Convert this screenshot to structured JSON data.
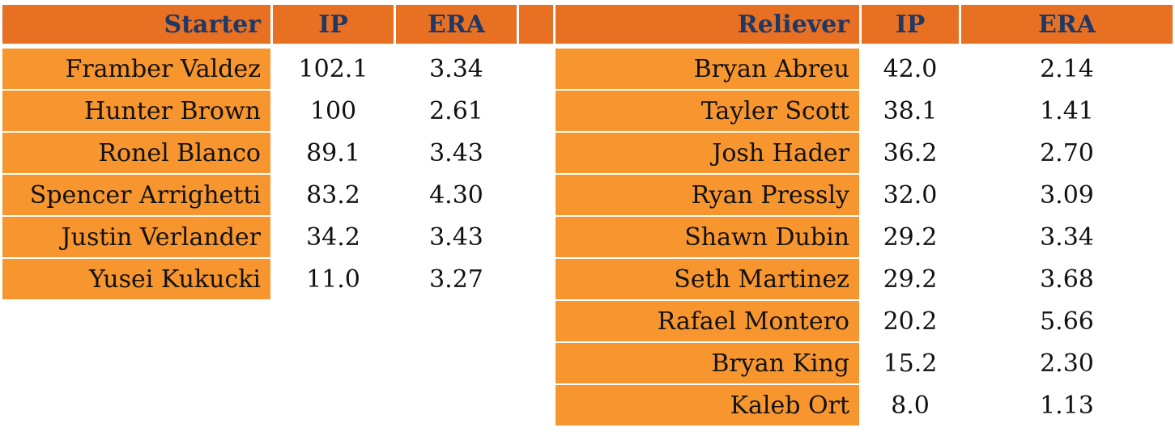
{
  "colors": {
    "header_bg": "#e87022",
    "name_bg": "#f7962f",
    "header_text": "#1f3864"
  },
  "starters": {
    "headers": {
      "name": "Starter",
      "ip": "IP",
      "era": "ERA"
    },
    "rows": [
      {
        "name": "Framber Valdez",
        "ip": "102.1",
        "era": "3.34"
      },
      {
        "name": "Hunter Brown",
        "ip": "100",
        "era": "2.61"
      },
      {
        "name": "Ronel Blanco",
        "ip": "89.1",
        "era": "3.43"
      },
      {
        "name": "Spencer Arrighetti",
        "ip": "83.2",
        "era": "4.30"
      },
      {
        "name": "Justin Verlander",
        "ip": "34.2",
        "era": "3.43"
      },
      {
        "name": "Yusei Kukucki",
        "ip": "11.0",
        "era": "3.27"
      }
    ]
  },
  "relievers": {
    "headers": {
      "name": "Reliever",
      "ip": "IP",
      "era": "ERA"
    },
    "rows": [
      {
        "name": "Bryan Abreu",
        "ip": "42.0",
        "era": "2.14"
      },
      {
        "name": "Tayler Scott",
        "ip": "38.1",
        "era": "1.41"
      },
      {
        "name": "Josh Hader",
        "ip": "36.2",
        "era": "2.70"
      },
      {
        "name": "Ryan Pressly",
        "ip": "32.0",
        "era": "3.09"
      },
      {
        "name": "Shawn Dubin",
        "ip": "29.2",
        "era": "3.34"
      },
      {
        "name": "Seth Martinez",
        "ip": "29.2",
        "era": "3.68"
      },
      {
        "name": "Rafael Montero",
        "ip": "20.2",
        "era": "5.66"
      },
      {
        "name": "Bryan King",
        "ip": "15.2",
        "era": "2.30"
      },
      {
        "name": "Kaleb Ort",
        "ip": "8.0",
        "era": "1.13"
      }
    ]
  }
}
